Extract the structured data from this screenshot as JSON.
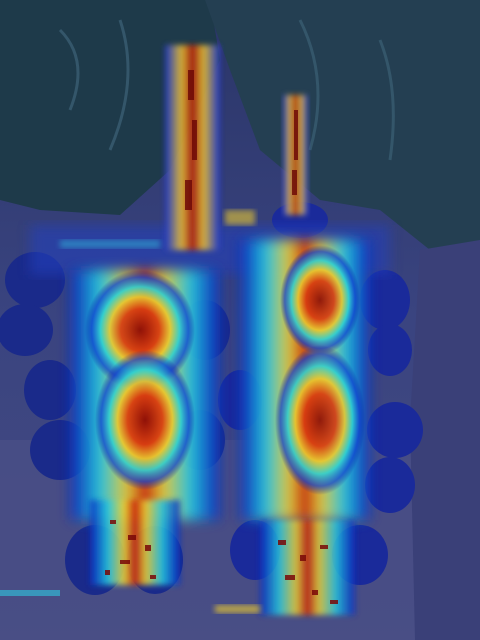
{
  "image": {
    "subject": "grape-clusters-on-vine",
    "overlay": "attention-heatmap-jet-colormap",
    "colors": {
      "background_blue": "#1d2a6b",
      "leaf_dark": "#1f3a45",
      "heat_low": "#0a1aa0",
      "heat_mid_low": "#18c0e8",
      "heat_mid": "#e8e830",
      "heat_high": "#e03010",
      "heat_max": "#7a0505"
    }
  }
}
